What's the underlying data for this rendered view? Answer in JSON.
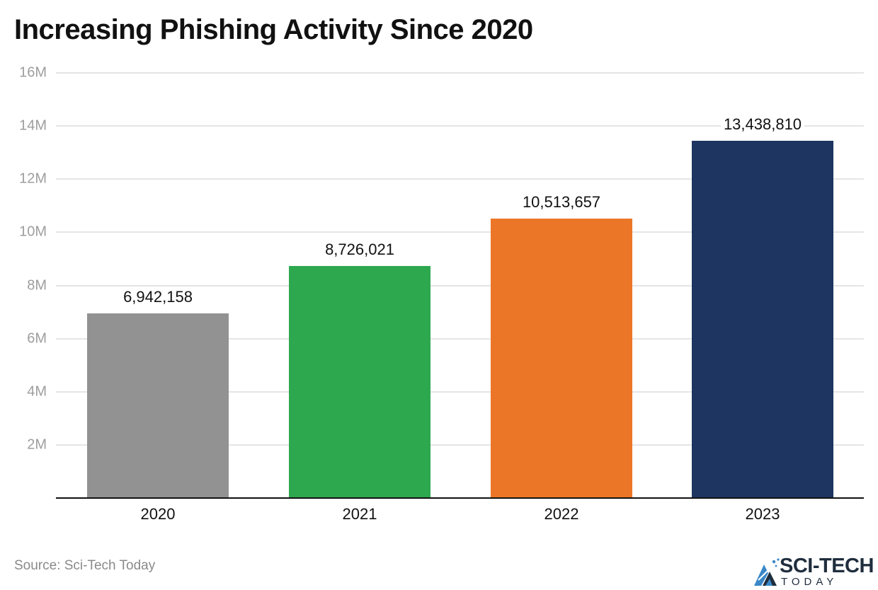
{
  "title": "Increasing Phishing Activity Since 2020",
  "source": "Source: Sci-Tech Today",
  "logo": {
    "main": "SCI-TECH",
    "sub": "TODAY"
  },
  "y_ticks": [
    {
      "label": "16M",
      "value": 16000000
    },
    {
      "label": "14M",
      "value": 14000000
    },
    {
      "label": "12M",
      "value": 12000000
    },
    {
      "label": "10M",
      "value": 10000000
    },
    {
      "label": "8M",
      "value": 8000000
    },
    {
      "label": "6M",
      "value": 6000000
    },
    {
      "label": "4M",
      "value": 4000000
    },
    {
      "label": "2M",
      "value": 2000000
    }
  ],
  "bars": [
    {
      "category": "2020",
      "value": 6942158,
      "label": "6,942,158",
      "color": "#929292"
    },
    {
      "category": "2021",
      "value": 8726021,
      "label": "8,726,021",
      "color": "#2ea84f"
    },
    {
      "category": "2022",
      "value": 10513657,
      "label": "10,513,657",
      "color": "#ec7628"
    },
    {
      "category": "2023",
      "value": 13438810,
      "label": "13,438,810",
      "color": "#1e3461"
    }
  ],
  "chart_data": {
    "type": "bar",
    "title": "Increasing Phishing Activity Since 2020",
    "categories": [
      "2020",
      "2021",
      "2022",
      "2023"
    ],
    "values": [
      6942158,
      8726021,
      10513657,
      13438810
    ],
    "data_labels": [
      "6,942,158",
      "8,726,021",
      "10,513,657",
      "13,438,810"
    ],
    "colors": [
      "#929292",
      "#2ea84f",
      "#ec7628",
      "#1e3461"
    ],
    "xlabel": "",
    "ylabel": "",
    "ylim": [
      0,
      16000000
    ],
    "y_tick_labels": [
      "2M",
      "4M",
      "6M",
      "8M",
      "10M",
      "12M",
      "14M",
      "16M"
    ],
    "grid": true,
    "legend": "none",
    "source": "Source: Sci-Tech Today"
  }
}
